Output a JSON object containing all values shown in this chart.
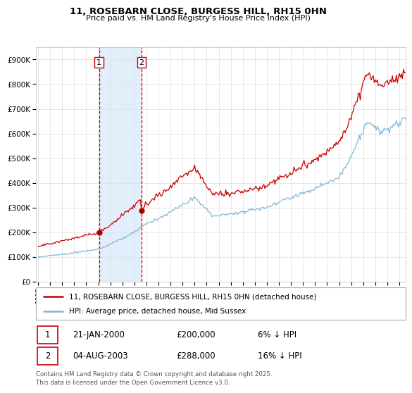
{
  "title_line1": "11, ROSEBARN CLOSE, BURGESS HILL, RH15 0HN",
  "title_line2": "Price paid vs. HM Land Registry's House Price Index (HPI)",
  "ytick_values": [
    0,
    100000,
    200000,
    300000,
    400000,
    500000,
    600000,
    700000,
    800000,
    900000
  ],
  "ylim": [
    0,
    950000
  ],
  "xlim_start": 1994.8,
  "xlim_end": 2025.5,
  "xtick_years": [
    1995,
    1996,
    1997,
    1998,
    1999,
    2000,
    2001,
    2002,
    2003,
    2004,
    2005,
    2006,
    2007,
    2008,
    2009,
    2010,
    2011,
    2012,
    2013,
    2014,
    2015,
    2016,
    2017,
    2018,
    2019,
    2020,
    2021,
    2022,
    2023,
    2024,
    2025
  ],
  "hpi_color": "#7ab4d8",
  "price_color": "#cc0000",
  "transaction1_date": 2000.055,
  "transaction1_price": 200000,
  "transaction2_date": 2003.586,
  "transaction2_price": 288000,
  "shaded_color": "#d0e4f5",
  "shaded_alpha": 0.6,
  "vline_color": "#cc0000",
  "legend_label_red": "11, ROSEBARN CLOSE, BURGESS HILL, RH15 0HN (detached house)",
  "legend_label_blue": "HPI: Average price, detached house, Mid Sussex",
  "footer": "Contains HM Land Registry data © Crown copyright and database right 2025.\nThis data is licensed under the Open Government Licence v3.0.",
  "background_color": "#ffffff",
  "grid_color": "#dddddd"
}
